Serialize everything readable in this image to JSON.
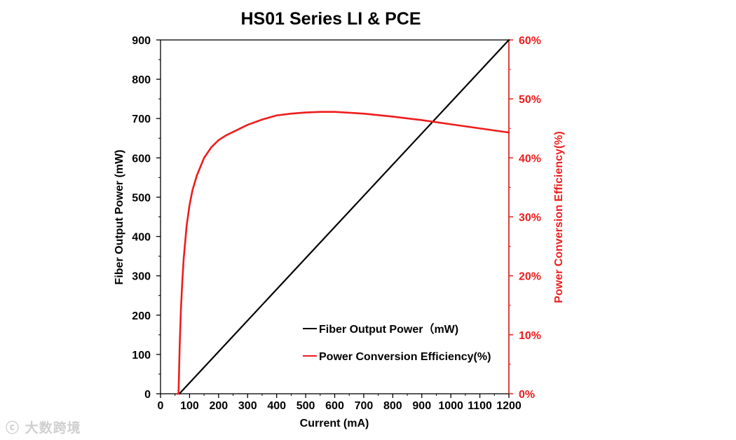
{
  "chart_data": {
    "type": "line",
    "title": "HS01 Series LI & PCE",
    "xlabel": "Current (mA)",
    "ylabel": "Fiber Output Power (mW)",
    "y2label": "Power Conversion Efficiency(%)",
    "xlim": [
      0,
      1200
    ],
    "ylim": [
      0,
      900
    ],
    "y2lim": [
      0,
      60
    ],
    "xticks": [
      "0",
      "100",
      "200",
      "300",
      "400",
      "500",
      "600",
      "700",
      "800",
      "900",
      "1000",
      "1100",
      "1200"
    ],
    "yticks": [
      "0",
      "100",
      "200",
      "300",
      "400",
      "500",
      "600",
      "700",
      "800",
      "900"
    ],
    "y2ticks": [
      "0%",
      "10%",
      "20%",
      "30%",
      "40%",
      "50%",
      "60%"
    ],
    "grid": false,
    "legend_position": "bottom-center",
    "series": [
      {
        "name": "Fiber Output Power（mW)",
        "axis": "left",
        "color": "#000000",
        "x": [
          65,
          1200
        ],
        "y": [
          0,
          900
        ]
      },
      {
        "name": "Power Conversion Efficiency(%)",
        "axis": "right",
        "color": "#ee1c1c",
        "x": [
          58,
          62,
          66,
          70,
          75,
          80,
          90,
          100,
          110,
          125,
          150,
          175,
          200,
          225,
          250,
          300,
          350,
          400,
          450,
          500,
          550,
          600,
          700,
          800,
          900,
          1000,
          1100,
          1200
        ],
        "y": [
          0,
          0,
          8,
          14,
          19,
          23,
          28.5,
          32,
          34.5,
          37,
          40,
          41.8,
          43,
          43.8,
          44.4,
          45.6,
          46.5,
          47.2,
          47.5,
          47.7,
          47.8,
          47.8,
          47.5,
          47.0,
          46.4,
          45.7,
          45.0,
          44.3
        ]
      }
    ]
  },
  "watermark": "大数跨境"
}
